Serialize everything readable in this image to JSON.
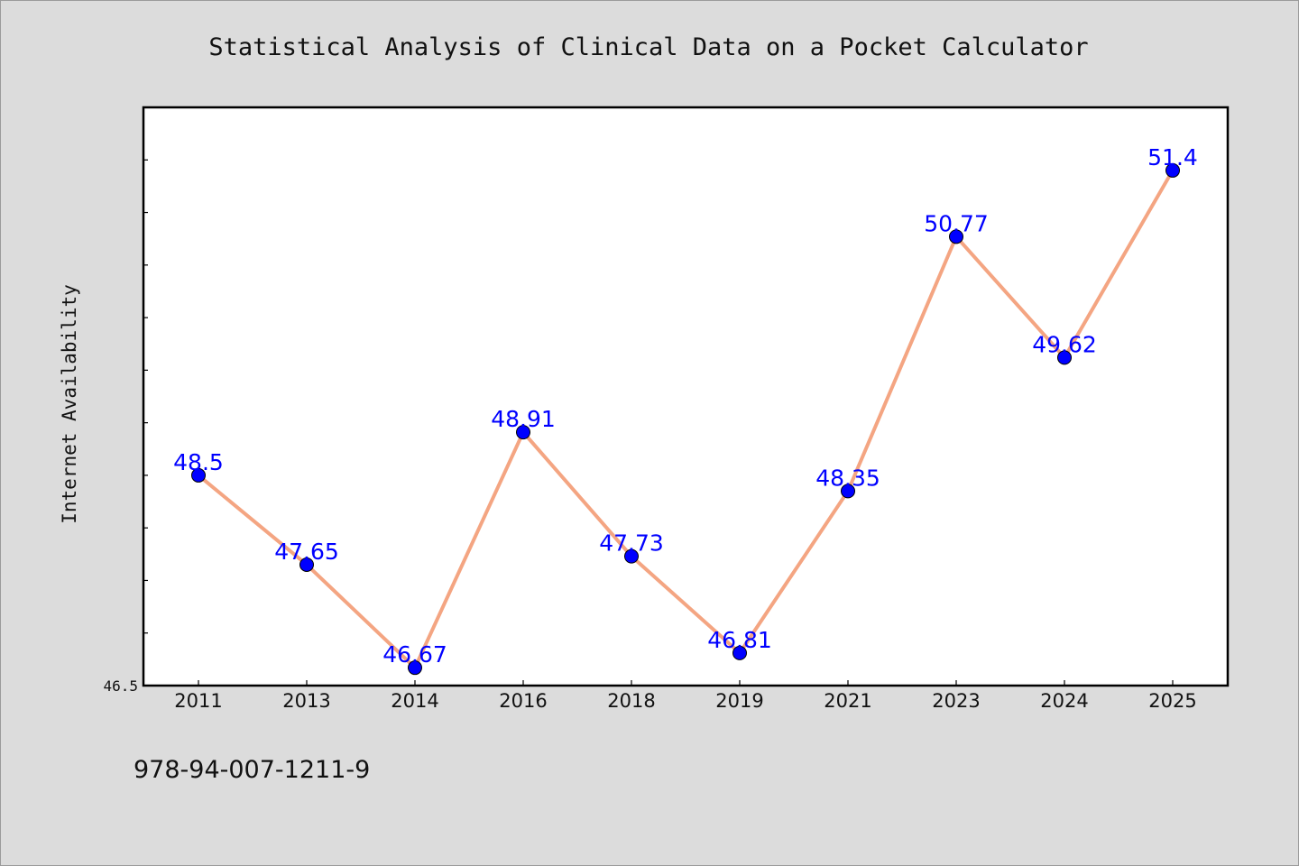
{
  "chart_data": {
    "type": "line",
    "title": "Statistical Analysis of Clinical Data on a Pocket Calculator",
    "xlabel": "",
    "ylabel": "Internet Availability",
    "categories": [
      "2011",
      "2013",
      "2014",
      "2016",
      "2018",
      "2019",
      "2021",
      "2023",
      "2024",
      "2025"
    ],
    "values": [
      48.5,
      47.65,
      46.67,
      48.91,
      47.73,
      46.81,
      48.35,
      50.77,
      49.62,
      51.4
    ],
    "data_labels": [
      "48.5",
      "47.65",
      "46.67",
      "48.91",
      "47.73",
      "46.81",
      "48.35",
      "50.77",
      "49.62",
      "51.4"
    ],
    "ylim": [
      46.5,
      52.0
    ],
    "y_tick_labels": [
      "46.5"
    ],
    "grid": false,
    "legend": "none",
    "colors": {
      "line": "#f4a582",
      "marker": "#0000ff",
      "data_label": "#0000ff",
      "plot_background": "#ffffff",
      "figure_background": "#dcdcdc"
    }
  },
  "footnote": "978-94-007-1211-9"
}
